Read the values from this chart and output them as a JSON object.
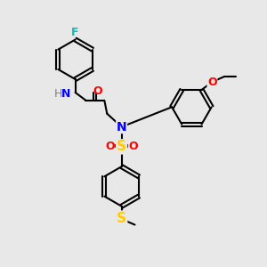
{
  "background_color": "#e8e8e8",
  "bond_color": "#000000",
  "atom_colors": {
    "F": "#00bfbf",
    "N": "#0000ff",
    "O": "#ff0000",
    "S_sulfonyl": "#ffcc00",
    "S_thio": "#ffcc00",
    "H": "#808080",
    "C": "#000000"
  },
  "figsize": [
    3.0,
    3.0
  ],
  "dpi": 100
}
